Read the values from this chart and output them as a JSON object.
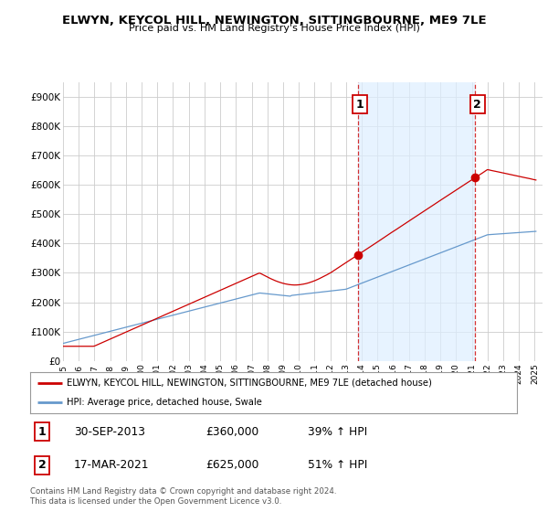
{
  "title": "ELWYN, KEYCOL HILL, NEWINGTON, SITTINGBOURNE, ME9 7LE",
  "subtitle": "Price paid vs. HM Land Registry's House Price Index (HPI)",
  "red_label": "ELWYN, KEYCOL HILL, NEWINGTON, SITTINGBOURNE, ME9 7LE (detached house)",
  "blue_label": "HPI: Average price, detached house, Swale",
  "annotation1_date": "30-SEP-2013",
  "annotation1_price": "£360,000",
  "annotation1_hpi": "39% ↑ HPI",
  "annotation2_date": "17-MAR-2021",
  "annotation2_price": "£625,000",
  "annotation2_hpi": "51% ↑ HPI",
  "point1_x": 2013.75,
  "point1_y": 360000,
  "point2_x": 2021.21,
  "point2_y": 625000,
  "vline1_x": 2013.75,
  "vline2_x": 2021.21,
  "footnote": "Contains HM Land Registry data © Crown copyright and database right 2024.\nThis data is licensed under the Open Government Licence v3.0.",
  "background_color": "#ffffff",
  "plot_bg_color": "#ffffff",
  "shade_color": "#ddeeff",
  "red_color": "#cc0000",
  "blue_color": "#6699cc",
  "ylim": [
    0,
    950000
  ],
  "xlim_start": 1995.0,
  "xlim_end": 2025.5
}
